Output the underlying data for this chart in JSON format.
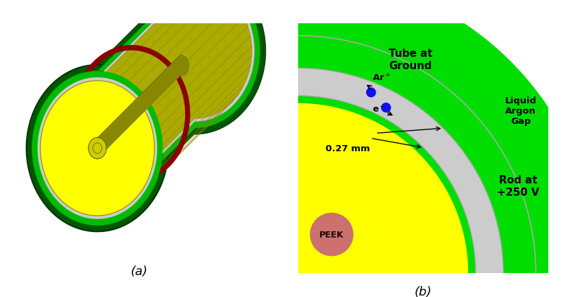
{
  "fig_width": 8.37,
  "fig_height": 4.35,
  "bg_color": "#ffffff",
  "label_a": "(a)",
  "label_b": "(b)",
  "panel_b": {
    "white_bg": "#ffffff",
    "tube_color": "#00dd00",
    "gap_color": "#cccccc",
    "rod_color": "#ffff00",
    "peek_color": "#cc7070",
    "dot_color": "#1111ee",
    "text_tube": "Tube at\nGround",
    "text_rod": "Rod at\n+250 V",
    "text_gap": "Liquid\nArgon\nGap",
    "text_peek": "PEEK",
    "text_dist": "0.27 mm"
  }
}
